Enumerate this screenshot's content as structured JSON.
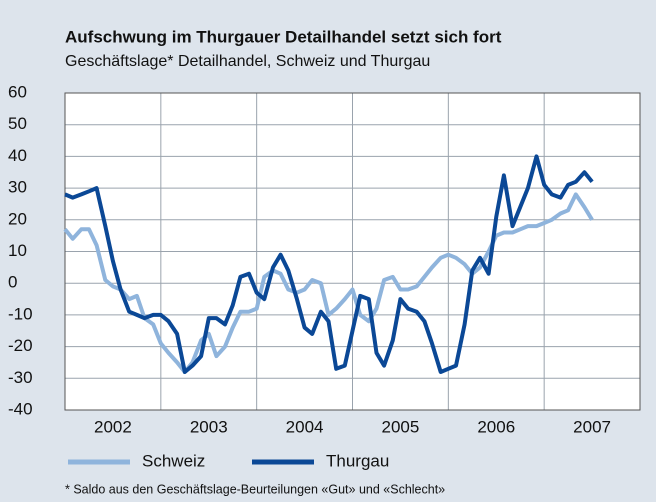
{
  "chart_data": {
    "type": "line",
    "title": "Aufschwung im Thurgauer Detailhandel setzt sich fort",
    "subtitle": "Geschäftslage* Detailhandel, Schweiz und Thurgau",
    "footnote": "* Saldo aus den Geschäftslage-Beurteilungen «Gut» und «Schlecht»",
    "x": [
      2002.0,
      2002.08,
      2002.17,
      2002.25,
      2002.33,
      2002.42,
      2002.5,
      2002.58,
      2002.67,
      2002.75,
      2002.83,
      2002.92,
      2003.0,
      2003.08,
      2003.17,
      2003.25,
      2003.33,
      2003.42,
      2003.5,
      2003.58,
      2003.67,
      2003.75,
      2003.83,
      2003.92,
      2004.0,
      2004.08,
      2004.17,
      2004.25,
      2004.33,
      2004.42,
      2004.5,
      2004.58,
      2004.67,
      2004.75,
      2004.83,
      2004.92,
      2005.0,
      2005.08,
      2005.17,
      2005.25,
      2005.33,
      2005.42,
      2005.5,
      2005.58,
      2005.67,
      2005.75,
      2005.83,
      2005.92,
      2006.0,
      2006.08,
      2006.17,
      2006.25,
      2006.33,
      2006.42,
      2006.5,
      2006.58,
      2006.67,
      2006.75,
      2006.83,
      2006.92,
      2007.0,
      2007.08,
      2007.17,
      2007.25,
      2007.33,
      2007.42,
      2007.5
    ],
    "series": [
      {
        "name": "Schweiz",
        "color": "#8fb4dc",
        "values": [
          17,
          14,
          17,
          17,
          12,
          1,
          -1,
          -2,
          -5,
          -4,
          -11,
          -13,
          -19,
          -22,
          -25,
          -28,
          -25,
          -18,
          -16,
          -23,
          -20,
          -14,
          -9,
          -9,
          -8,
          2,
          4,
          3,
          -2,
          -3,
          -2,
          1,
          0,
          -10,
          -8,
          -5,
          -2,
          -10,
          -12,
          -8,
          1,
          2,
          -2,
          -2,
          -1,
          2,
          5,
          8,
          9,
          8,
          6,
          3,
          5,
          10,
          15,
          16,
          16,
          17,
          18,
          18,
          19,
          20,
          22,
          23,
          28,
          24,
          20
        ]
      },
      {
        "name": "Thurgau",
        "color": "#0b4896",
        "values": [
          28,
          27,
          28,
          29,
          30,
          18,
          7,
          -2,
          -9,
          -10,
          -11,
          -10,
          -10,
          -12,
          -16,
          -28,
          -26,
          -23,
          -11,
          -11,
          -13,
          -7,
          2,
          3,
          -3,
          -5,
          5,
          9,
          4,
          -5,
          -14,
          -16,
          -9,
          -12,
          -27,
          -26,
          -15,
          -4,
          -5,
          -22,
          -26,
          -18,
          -5,
          -8,
          -9,
          -12,
          -19,
          -28,
          -27,
          -26,
          -13,
          4,
          8,
          3,
          21,
          34,
          18,
          24,
          30,
          40,
          31,
          28,
          27,
          31,
          32,
          35,
          32
        ]
      }
    ],
    "xlim": [
      2002,
      2008
    ],
    "xticks": [
      2002,
      2003,
      2004,
      2005,
      2006,
      2007
    ],
    "ylim": [
      -40,
      60
    ],
    "yticks": [
      -40,
      -30,
      -20,
      -10,
      0,
      10,
      20,
      30,
      40,
      50,
      60
    ],
    "grid": true
  }
}
